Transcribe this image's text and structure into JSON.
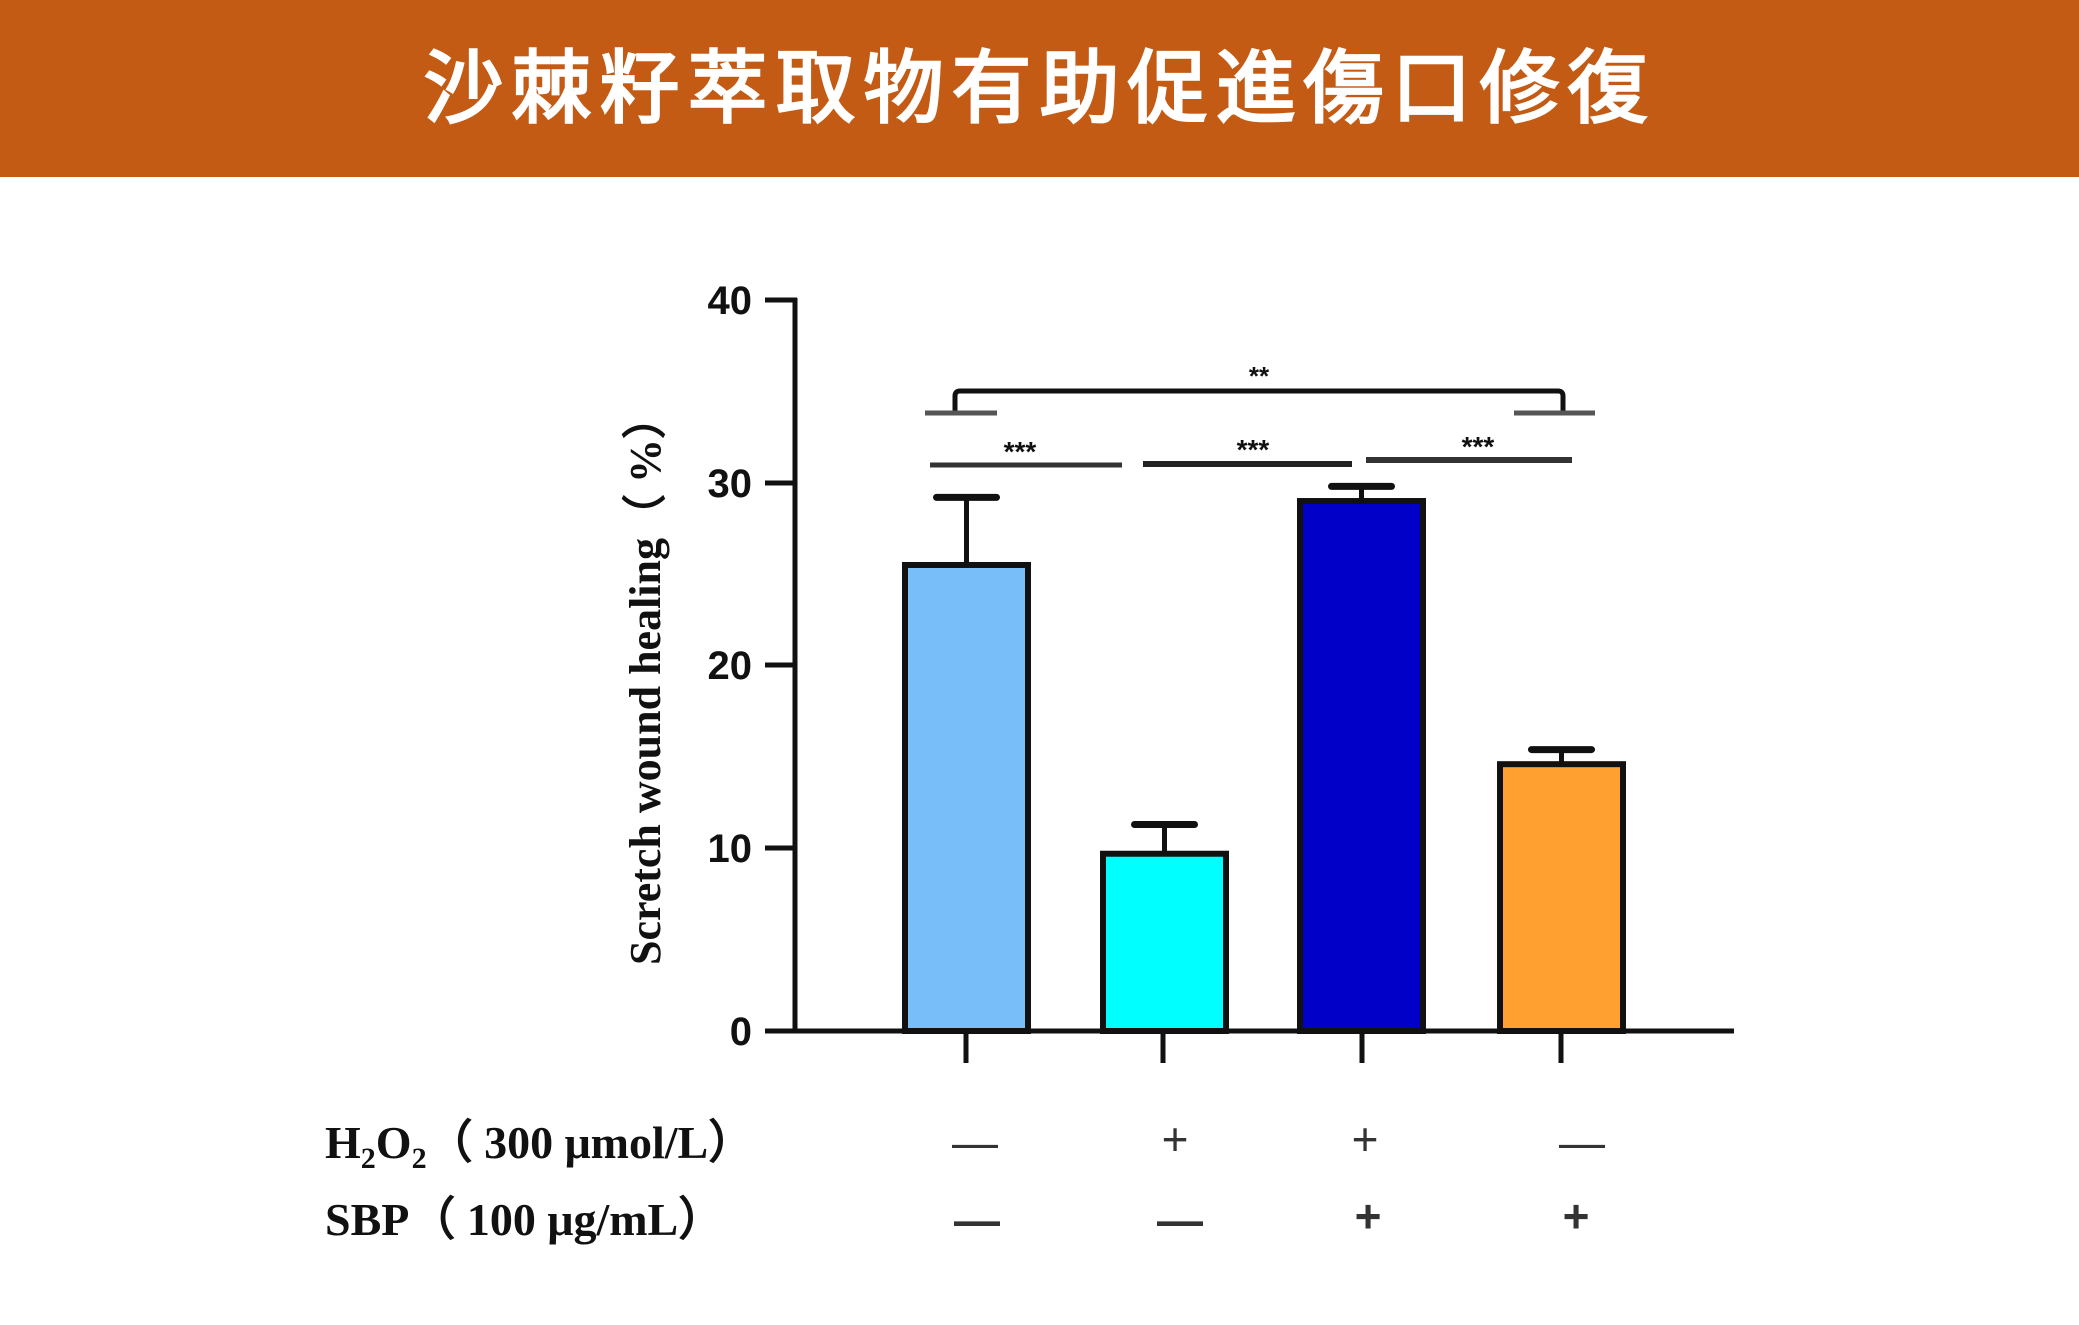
{
  "header": {
    "title": "沙棘籽萃取物有助促進傷口修復",
    "background": "#C35B14"
  },
  "chart_data": {
    "type": "bar",
    "title": "",
    "xlabel": "",
    "ylabel": "Scretch wound healing（ %）",
    "ylim": [
      0,
      40
    ],
    "yticks": [
      0,
      10,
      20,
      30,
      40
    ],
    "grid": false,
    "legend": "none",
    "categories": [
      "Control (H2O2 −, SBP −)",
      "H2O2 + / SBP −",
      "H2O2 + / SBP +",
      "H2O2 − / SBP +"
    ],
    "values": [
      25.5,
      9.7,
      29.0,
      14.6
    ],
    "error_upper": [
      3.7,
      1.6,
      0.8,
      0.8
    ],
    "bar_colors": [
      "#78BEF8",
      "#00FFFF",
      "#0000C8",
      "#FFA030"
    ],
    "treatment_rows": [
      {
        "label_main": "H",
        "label_sub1": "2",
        "label_mid": "O",
        "label_sub2": "2",
        "label_rest": "（ 300 μmol/L）",
        "full": "H2O2（ 300 μmol/L）",
        "values": [
          "—",
          "+",
          "+",
          "—"
        ]
      },
      {
        "label_main": "SBP（ 100 μg/mL）",
        "full": "SBP（ 100 μg/mL）",
        "values": [
          "—",
          "—",
          "+",
          "+"
        ]
      }
    ],
    "significance": [
      {
        "from": 1,
        "to": 4,
        "label": "**"
      },
      {
        "from": 1,
        "to": 2,
        "label": "***"
      },
      {
        "from": 2,
        "to": 3,
        "label": "***"
      },
      {
        "from": 3,
        "to": 4,
        "label": "***"
      }
    ]
  }
}
